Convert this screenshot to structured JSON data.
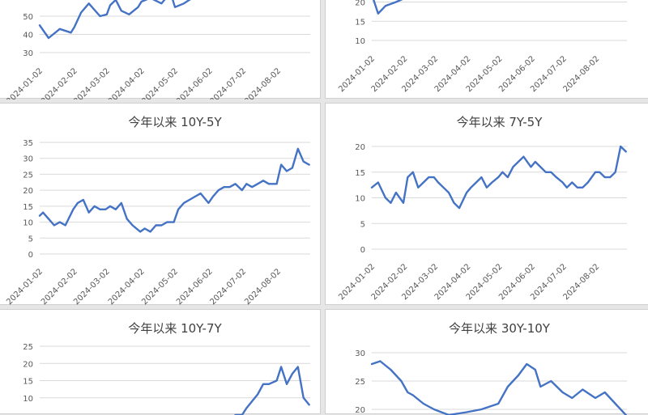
{
  "chart_data": [
    {
      "type": "line",
      "title": "",
      "x": [
        "2024-01-02",
        "2024-01-10",
        "2024-01-20",
        "2024-01-30",
        "2024-02-02",
        "2024-02-08",
        "2024-02-15",
        "2024-02-25",
        "2024-03-02",
        "2024-03-05",
        "2024-03-10",
        "2024-03-15",
        "2024-03-22",
        "2024-03-30",
        "2024-04-02",
        "2024-04-10",
        "2024-04-20",
        "2024-04-28",
        "2024-05-02",
        "2024-05-10",
        "2024-05-20"
      ],
      "values": [
        45,
        38,
        43,
        41,
        44,
        52,
        57,
        50,
        51,
        56,
        59,
        53,
        51,
        55,
        58,
        60,
        57,
        63,
        55,
        57,
        61
      ],
      "yticks": [
        30,
        40,
        50
      ],
      "ylim": [
        30,
        62
      ],
      "xticks": [
        "2024-01-02",
        "2024-02-02",
        "2024-03-02",
        "2024-04-02",
        "2024-05-02",
        "2024-06-02",
        "2024-07-02",
        "2024-08-02"
      ]
    },
    {
      "type": "line",
      "title": "",
      "x": [
        "2024-01-02",
        "2024-01-08",
        "2024-01-15",
        "2024-01-25",
        "2024-02-02",
        "2024-02-06",
        "2024-02-10",
        "2024-08-28"
      ],
      "values": [
        22,
        17,
        19,
        20,
        21,
        23,
        26,
        21
      ],
      "yticks": [
        10,
        15,
        20
      ],
      "ylim": [
        10,
        22
      ],
      "xticks": [
        "2024-01-02",
        "2024-02-02",
        "2024-03-02",
        "2024-04-02",
        "2024-05-02",
        "2024-06-02",
        "2024-07-02",
        "2024-08-02"
      ]
    },
    {
      "type": "line",
      "title": "今年以来 10Y-5Y",
      "x": [
        "2024-01-02",
        "2024-01-05",
        "2024-01-10",
        "2024-01-15",
        "2024-01-20",
        "2024-01-25",
        "2024-02-01",
        "2024-02-05",
        "2024-02-10",
        "2024-02-15",
        "2024-02-20",
        "2024-02-25",
        "2024-03-01",
        "2024-03-05",
        "2024-03-10",
        "2024-03-15",
        "2024-03-20",
        "2024-03-25",
        "2024-04-01",
        "2024-04-05",
        "2024-04-10",
        "2024-04-15",
        "2024-04-20",
        "2024-04-25",
        "2024-05-01",
        "2024-05-05",
        "2024-05-10",
        "2024-05-15",
        "2024-05-20",
        "2024-05-25",
        "2024-06-01",
        "2024-06-05",
        "2024-06-10",
        "2024-06-15",
        "2024-06-20",
        "2024-06-25",
        "2024-07-01",
        "2024-07-05",
        "2024-07-10",
        "2024-07-15",
        "2024-07-20",
        "2024-07-25",
        "2024-08-01",
        "2024-08-05",
        "2024-08-10",
        "2024-08-15",
        "2024-08-20",
        "2024-08-25",
        "2024-08-30"
      ],
      "values": [
        12,
        13,
        11,
        9,
        10,
        9,
        14,
        16,
        17,
        13,
        15,
        14,
        14,
        15,
        14,
        16,
        11,
        9,
        7,
        8,
        7,
        9,
        9,
        10,
        10,
        14,
        16,
        17,
        18,
        19,
        16,
        18,
        20,
        21,
        21,
        22,
        20,
        22,
        21,
        22,
        23,
        22,
        22,
        28,
        26,
        27,
        33,
        29,
        28
      ],
      "yticks": [
        0,
        5,
        10,
        15,
        20,
        25,
        30,
        35
      ],
      "ylim": [
        0,
        35
      ],
      "xticks": [
        "2024-01-02",
        "2024-02-02",
        "2024-03-02",
        "2024-04-02",
        "2024-05-02",
        "2024-06-02",
        "2024-07-02",
        "2024-08-02"
      ]
    },
    {
      "type": "line",
      "title": "今年以来 7Y-5Y",
      "x": [
        "2024-01-02",
        "2024-01-08",
        "2024-01-15",
        "2024-01-20",
        "2024-01-25",
        "2024-02-01",
        "2024-02-05",
        "2024-02-10",
        "2024-02-15",
        "2024-02-20",
        "2024-02-25",
        "2024-03-01",
        "2024-03-05",
        "2024-03-10",
        "2024-03-15",
        "2024-03-20",
        "2024-03-25",
        "2024-04-01",
        "2024-04-05",
        "2024-04-10",
        "2024-04-15",
        "2024-04-20",
        "2024-04-25",
        "2024-05-01",
        "2024-05-05",
        "2024-05-10",
        "2024-05-15",
        "2024-05-20",
        "2024-05-25",
        "2024-06-01",
        "2024-06-05",
        "2024-06-10",
        "2024-06-15",
        "2024-06-20",
        "2024-06-25",
        "2024-07-01",
        "2024-07-05",
        "2024-07-10",
        "2024-07-15",
        "2024-07-20",
        "2024-07-25",
        "2024-08-01",
        "2024-08-05",
        "2024-08-10",
        "2024-08-15",
        "2024-08-20",
        "2024-08-25",
        "2024-08-30"
      ],
      "values": [
        12,
        13,
        10,
        9,
        11,
        9,
        14,
        15,
        12,
        13,
        14,
        14,
        13,
        12,
        11,
        9,
        8,
        11,
        12,
        13,
        14,
        12,
        13,
        14,
        15,
        14,
        16,
        17,
        18,
        16,
        17,
        16,
        15,
        15,
        14,
        13,
        12,
        13,
        12,
        12,
        13,
        15,
        15,
        14,
        14,
        15,
        20,
        19
      ],
      "yticks": [
        0,
        5,
        10,
        15,
        20
      ],
      "ylim": [
        0,
        20
      ],
      "xticks": [
        "2024-01-02",
        "2024-02-02",
        "2024-03-02",
        "2024-04-02",
        "2024-05-02",
        "2024-06-02",
        "2024-07-02",
        "2024-08-02"
      ]
    },
    {
      "type": "line",
      "title": "今年以来 10Y-7Y",
      "x": [
        "2024-06-25",
        "2024-06-28",
        "2024-07-01",
        "2024-07-05",
        "2024-07-10",
        "2024-07-15",
        "2024-07-20",
        "2024-07-25",
        "2024-08-01",
        "2024-08-05",
        "2024-08-10",
        "2024-08-15",
        "2024-08-20",
        "2024-08-25",
        "2024-08-30"
      ],
      "values": [
        5,
        5,
        5,
        7,
        9,
        11,
        14,
        14,
        15,
        19,
        14,
        17,
        19,
        10,
        8
      ],
      "yticks": [
        10,
        15,
        20,
        25
      ],
      "ylim": [
        5,
        25
      ],
      "xticks": [
        "2024-01-02",
        "2024-02-02",
        "2024-03-02",
        "2024-04-02",
        "2024-05-02",
        "2024-06-02",
        "2024-07-02",
        "2024-08-02"
      ]
    },
    {
      "type": "line",
      "title": "今年以来 30Y-10Y",
      "x": [
        "2024-01-02",
        "2024-01-10",
        "2024-01-20",
        "2024-01-30",
        "2024-02-05",
        "2024-02-10",
        "2024-02-20",
        "2024-03-01",
        "2024-03-15",
        "2024-04-01",
        "2024-04-15",
        "2024-05-01",
        "2024-05-10",
        "2024-05-20",
        "2024-05-28",
        "2024-06-05",
        "2024-06-10",
        "2024-06-20",
        "2024-07-01",
        "2024-07-10",
        "2024-07-20",
        "2024-08-01",
        "2024-08-10",
        "2024-08-20",
        "2024-08-30"
      ],
      "values": [
        28,
        28.5,
        27,
        25,
        23,
        22.5,
        21,
        20,
        19,
        19.5,
        20,
        21,
        24,
        26,
        28,
        27,
        24,
        25,
        23,
        22,
        23.5,
        22,
        23,
        21,
        19
      ],
      "yticks": [
        20,
        25,
        30
      ],
      "ylim": [
        19,
        30
      ],
      "xticks": [
        "2024-01-02",
        "2024-02-02",
        "2024-03-02",
        "2024-04-02",
        "2024-05-02",
        "2024-06-02",
        "2024-07-02",
        "2024-08-02"
      ]
    }
  ]
}
